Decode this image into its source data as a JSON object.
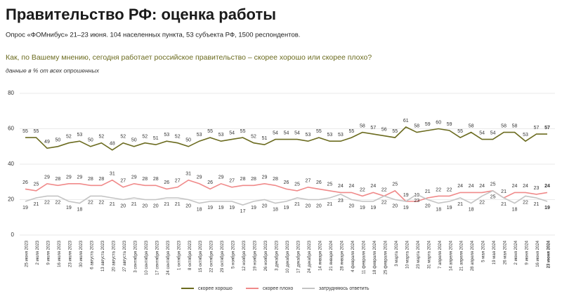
{
  "chart_data": {
    "type": "line",
    "title": "Правительство РФ: оценка работы",
    "subtitle": "Опрос «ФОМнибус» 21–23 июня. 104 населенных пункта, 53 субъекта РФ, 1500 респондентов.",
    "question": "Как, по Вашему мнению, сегодня работает российское правительство – скорее хорошо или скорее плохо?",
    "note": "данные в % от всех опрошенных",
    "categories": [
      "25 июня 2023",
      "2 июля 2023",
      "9 июля 2023",
      "16 июля 2023",
      "23 июля 2023",
      "30 июля 2023",
      "6 августа 2023",
      "13 августа 2023",
      "20 августа 2023",
      "27 августа 2023",
      "3 сентября 2023",
      "10 сентября 2023",
      "17 сентября 2023",
      "24 сентября 2023",
      "1 октября 2023",
      "8 октября 2023",
      "15 октября 2023",
      "22 октября 2023",
      "29 октября 2023",
      "5 ноября 2023",
      "12 ноября 2023",
      "19 ноября 2023",
      "26 ноября 2023",
      "3 декабря 2023",
      "10 декабря 2023",
      "17 декабря 2023",
      "24 декабря 2023",
      "14 января 2024",
      "21 января 2024",
      "28 января 2024",
      "4 февраля 2024",
      "11 февраля 2024",
      "18 февраля 2024",
      "25 февраля 2024",
      "3 марта 2024",
      "10 марта 2024",
      "23 марта 2024",
      "31 марта 2024",
      "7 апреля 2024",
      "14 апреля 2024",
      "21 апреля 2024",
      "28 апреля 2024",
      "5 мая 2024",
      "19 мая 2024",
      "26 мая 2024",
      "2 июня 2024",
      "9 июня 2024",
      "16 июня 2024",
      "23 июня 2024"
    ],
    "series": [
      {
        "name": "скорее хорошо",
        "color": "#6b6b1f",
        "values": [
          55,
          55,
          49,
          50,
          52,
          53,
          50,
          52,
          48,
          52,
          50,
          52,
          51,
          53,
          52,
          50,
          53,
          55,
          53,
          54,
          55,
          52,
          51,
          54,
          54,
          54,
          53,
          55,
          53,
          53,
          55,
          58,
          57,
          56,
          55,
          61,
          58,
          59,
          60,
          59,
          55,
          58,
          54,
          54,
          58,
          58,
          53,
          57,
          57
        ]
      },
      {
        "name": "скорее плохо",
        "color": "#f08a8a",
        "values": [
          26,
          25,
          29,
          28,
          29,
          29,
          28,
          28,
          31,
          27,
          29,
          28,
          28,
          26,
          27,
          31,
          29,
          26,
          29,
          27,
          28,
          28,
          29,
          28,
          26,
          25,
          27,
          26,
          25,
          24,
          24,
          22,
          24,
          22,
          25,
          19,
          19,
          21,
          22,
          22,
          24,
          24,
          24,
          25,
          21,
          24,
          24,
          23,
          24
        ]
      },
      {
        "name": "затрудняюсь ответить",
        "color": "#c4c4c4",
        "values": [
          19,
          21,
          22,
          22,
          19,
          18,
          22,
          22,
          21,
          20,
          21,
          20,
          20,
          21,
          21,
          20,
          18,
          19,
          19,
          19,
          17,
          19,
          20,
          18,
          19,
          21,
          20,
          20,
          21,
          23,
          20,
          19,
          19,
          22,
          20,
          19,
          23,
          20,
          18,
          19,
          21,
          18,
          22,
          25,
          21,
          18,
          22,
          21,
          19
        ]
      }
    ],
    "ylim": [
      0,
      80
    ],
    "yticks": [
      0,
      20,
      40,
      60,
      80
    ],
    "grid": true
  }
}
